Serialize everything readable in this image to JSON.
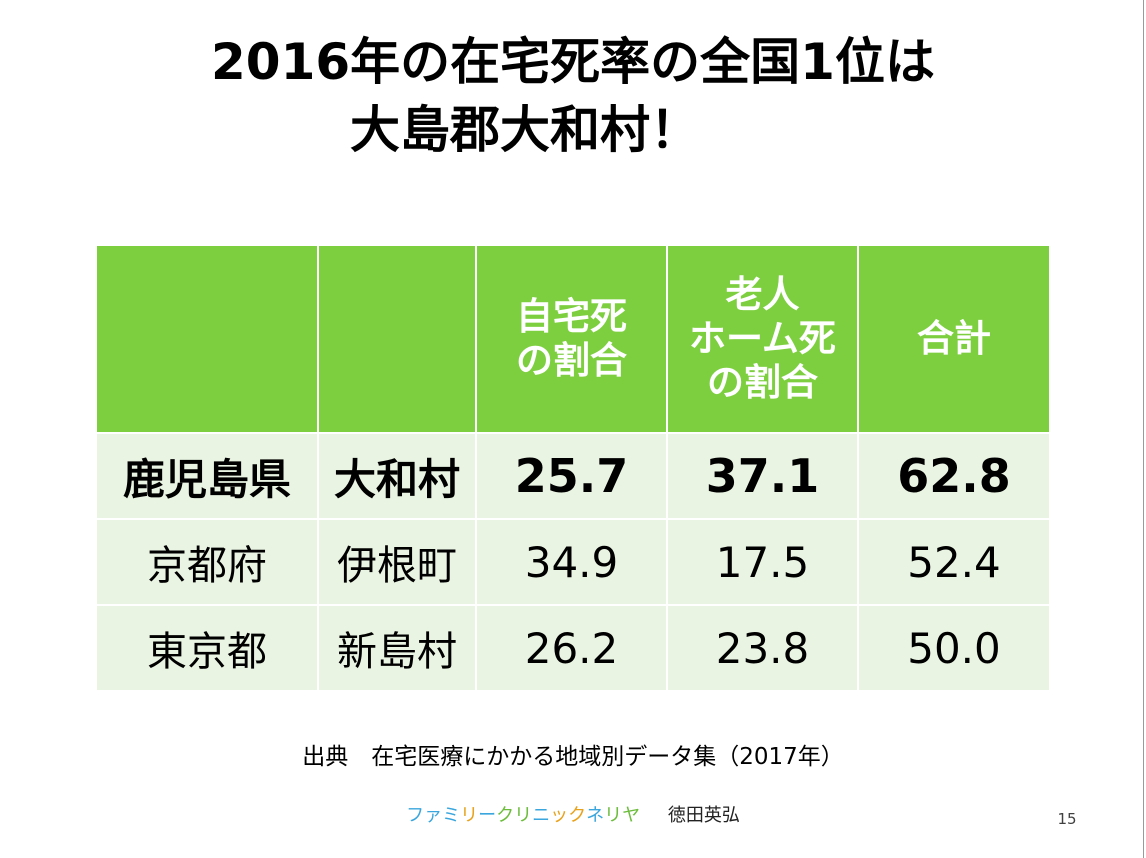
{
  "slide": {
    "title_line1": "2016年の在宅死率の全国1位は",
    "title_line2": "大島郡大和村！",
    "page_number": "15"
  },
  "table": {
    "headers": {
      "col1": "",
      "col2": "",
      "col3_line1": "自宅死",
      "col3_line2": "の割合",
      "col4_line1": "老人",
      "col4_line2": "ホーム死",
      "col4_line3": "の割合",
      "col5": "合計"
    },
    "rows": [
      {
        "prefecture": "鹿児島県",
        "municipality": "大和村",
        "home_death_rate": "25.7",
        "nursing_home_death_rate": "37.1",
        "total": "62.8"
      },
      {
        "prefecture": "京都府",
        "municipality": "伊根町",
        "home_death_rate": "34.9",
        "nursing_home_death_rate": "17.5",
        "total": "52.4"
      },
      {
        "prefecture": "東京都",
        "municipality": "新島村",
        "home_death_rate": "26.2",
        "nursing_home_death_rate": "23.8",
        "total": "50.0"
      }
    ]
  },
  "source": {
    "text": "出典　在宅医療にかかる地域別データ集（2017年）"
  },
  "footer": {
    "clinic_name": "ファミリークリニックネリヤ",
    "clinic_parts": [
      {
        "text": "ファミ",
        "color": "#3aa6dd"
      },
      {
        "text": "リ",
        "color": "#e8a21c"
      },
      {
        "text": "ー",
        "color": "#3aa6dd"
      },
      {
        "text": "クリ",
        "color": "#6cbd3c"
      },
      {
        "text": "ニ",
        "color": "#3aa6dd"
      },
      {
        "text": "ック",
        "color": "#e8a21c"
      },
      {
        "text": "ネ",
        "color": "#3aa6dd"
      },
      {
        "text": "リヤ",
        "color": "#6cbd3c"
      }
    ],
    "author": "徳田英弘"
  },
  "colors": {
    "header_bg": "#7dcf3f",
    "header_text": "#ffffff",
    "row_bg": "#eaf4e3"
  }
}
